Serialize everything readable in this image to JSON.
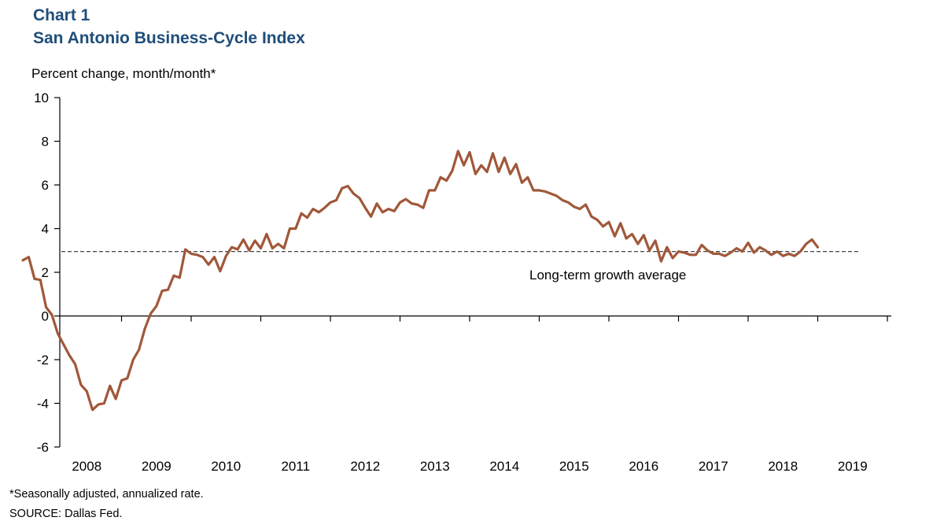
{
  "header": {
    "chart_number": "Chart 1",
    "title": "San Antonio Business-Cycle Index"
  },
  "footnotes": {
    "note": "*Seasonally adjusted, annualized rate.",
    "source": "SOURCE:  Dallas Fed."
  },
  "colors": {
    "series": "#a0583a",
    "title": "#1f4e79",
    "reference_line": "#444444"
  },
  "chart_data": {
    "type": "line",
    "ylabel": "Percent change, month/month*",
    "xlabel": "",
    "ylim": [
      -6,
      10
    ],
    "yticks": [
      -6,
      -4,
      -2,
      0,
      2,
      4,
      6,
      8,
      10
    ],
    "year_labels": [
      "2008",
      "2009",
      "2010",
      "2011",
      "2012",
      "2013",
      "2014",
      "2015",
      "2016",
      "2017",
      "2018",
      "2019"
    ],
    "x_start": "2007-08",
    "x_frequency": "monthly",
    "grid": false,
    "reference_line": {
      "value": 2.95,
      "label": "Long-term growth average",
      "style": "dashed"
    },
    "series": [
      {
        "name": "",
        "values": [
          2.55,
          2.7,
          1.7,
          1.65,
          0.4,
          0.05,
          -0.8,
          -1.3,
          -1.8,
          -2.2,
          -3.15,
          -3.45,
          -4.3,
          -4.05,
          -4.0,
          -3.2,
          -3.8,
          -2.95,
          -2.85,
          -2.0,
          -1.55,
          -0.6,
          0.1,
          0.45,
          1.15,
          1.2,
          1.85,
          1.75,
          3.05,
          2.85,
          2.8,
          2.7,
          2.35,
          2.7,
          2.05,
          2.75,
          3.15,
          3.05,
          3.5,
          3.0,
          3.45,
          3.1,
          3.75,
          3.1,
          3.3,
          3.1,
          4.0,
          4.0,
          4.7,
          4.5,
          4.9,
          4.75,
          4.95,
          5.2,
          5.3,
          5.85,
          5.95,
          5.6,
          5.4,
          4.95,
          4.55,
          5.15,
          4.75,
          4.9,
          4.8,
          5.2,
          5.35,
          5.15,
          5.1,
          4.95,
          5.75,
          5.75,
          6.35,
          6.2,
          6.65,
          7.55,
          6.9,
          7.5,
          6.5,
          6.9,
          6.6,
          7.45,
          6.6,
          7.25,
          6.5,
          6.95,
          6.1,
          6.35,
          5.75,
          5.75,
          5.7,
          5.6,
          5.5,
          5.3,
          5.2,
          5.0,
          4.9,
          5.1,
          4.55,
          4.4,
          4.1,
          4.3,
          3.65,
          4.25,
          3.55,
          3.75,
          3.3,
          3.7,
          3.0,
          3.45,
          2.5,
          3.15,
          2.65,
          2.95,
          2.9,
          2.8,
          2.8,
          3.25,
          3.0,
          2.85,
          2.85,
          2.75,
          2.9,
          3.1,
          2.95,
          3.35,
          2.9,
          3.15,
          3.0,
          2.8,
          2.95,
          2.75,
          2.85,
          2.75,
          2.95,
          3.3,
          3.5,
          3.15
        ]
      }
    ]
  }
}
